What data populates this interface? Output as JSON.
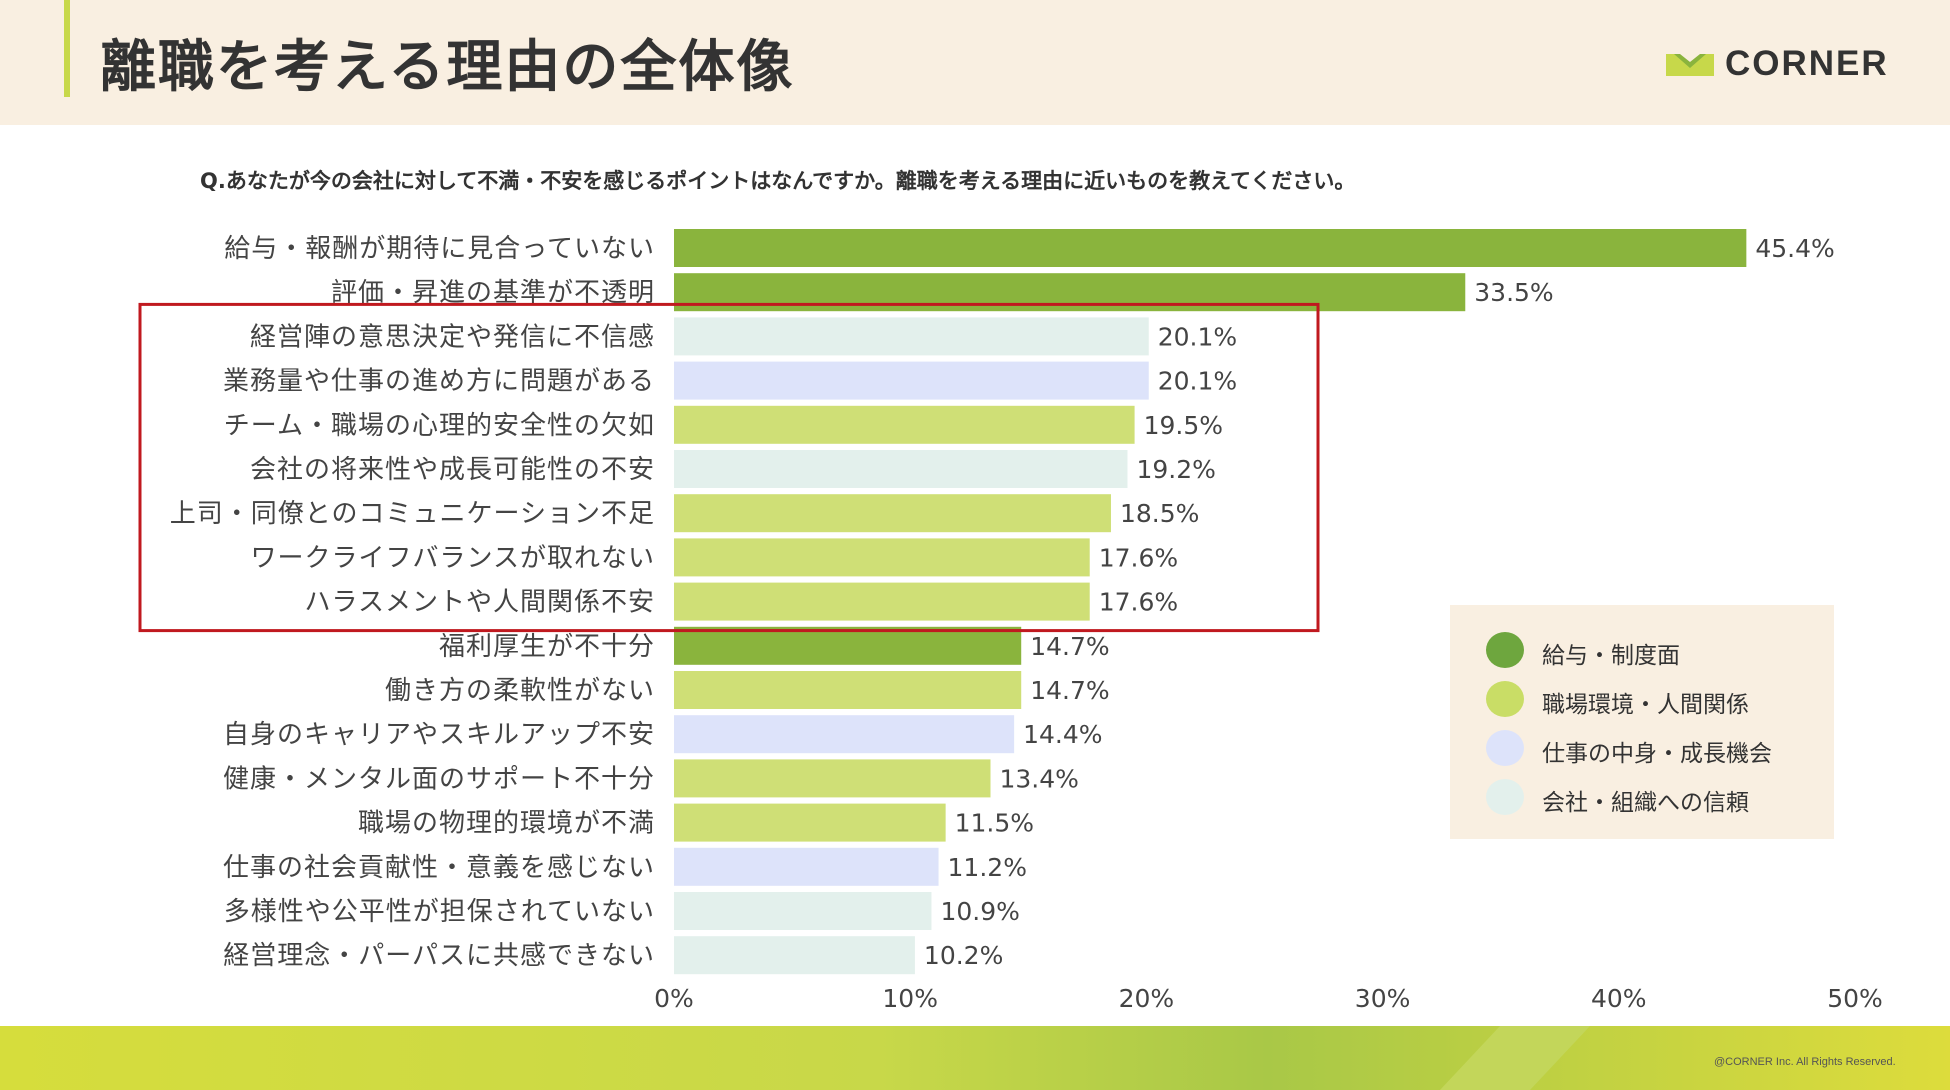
{
  "header": {
    "title": "離職を考える理由の全体像",
    "brand_name": "CORNER",
    "brand_icon": "corner-logo-icon"
  },
  "question": "Q.あなたが今の会社に対して不満・不安を感じるポイントはなんですか。離職を考える理由に近いものを教えてください。",
  "colors": {
    "salary": "#8ab43d",
    "workplace": "#cfdf76",
    "job": "#dde3fa",
    "company": "#e3f0ec",
    "highlight_box": "#c0191f"
  },
  "chart_data": {
    "type": "bar",
    "orientation": "horizontal",
    "title": "",
    "xlabel": "",
    "ylabel": "",
    "xlim": [
      0,
      50
    ],
    "x_ticks": [
      "0%",
      "10%",
      "20%",
      "30%",
      "40%",
      "50%"
    ],
    "grid": false,
    "legend_position": "bottom-right",
    "categories": [
      "給与・報酬が期待に見合っていない",
      "評価・昇進の基準が不透明",
      "経営陣の意思決定や発信に不信感",
      "業務量や仕事の進め方に問題がある",
      "チーム・職場の心理的安全性の欠如",
      "会社の将来性や成長可能性の不安",
      "上司・同僚とのコミュニケーション不足",
      "ワークライフバランスが取れない",
      "ハラスメントや人間関係不安",
      "福利厚生が不十分",
      "働き方の柔軟性がない",
      "自身のキャリアやスキルアップ不安",
      "健康・メンタル面のサポート不十分",
      "職場の物理的環境が不満",
      "仕事の社会貢献性・意義を感じない",
      "多様性や公平性が担保されていない",
      "経営理念・パーパスに共感できない"
    ],
    "values": [
      45.4,
      33.5,
      20.1,
      20.1,
      19.5,
      19.2,
      18.5,
      17.6,
      17.6,
      14.7,
      14.7,
      14.4,
      13.4,
      11.5,
      11.2,
      10.9,
      10.2
    ],
    "value_labels": [
      "45.4%",
      "33.5%",
      "20.1%",
      "20.1%",
      "19.5%",
      "19.2%",
      "18.5%",
      "17.6%",
      "17.6%",
      "14.7%",
      "14.7%",
      "14.4%",
      "13.4%",
      "11.5%",
      "11.2%",
      "10.9%",
      "10.2%"
    ],
    "groups": [
      "salary",
      "salary",
      "company",
      "job",
      "workplace",
      "company",
      "workplace",
      "workplace",
      "workplace",
      "salary",
      "workplace",
      "job",
      "workplace",
      "workplace",
      "job",
      "company",
      "company"
    ],
    "highlighted_range": [
      2,
      8
    ],
    "legend": [
      {
        "key": "salary",
        "label": "給与・制度面",
        "color": "#6ea63e"
      },
      {
        "key": "workplace",
        "label": "職場環境・人間関係",
        "color": "#c9dd66"
      },
      {
        "key": "job",
        "label": "仕事の中身・成長機会",
        "color": "#dde3fa"
      },
      {
        "key": "company",
        "label": "会社・組織への信頼",
        "color": "#e3f0ec"
      }
    ]
  },
  "footer": {
    "copyright": "@CORNER Inc. All Rights Reserved."
  }
}
